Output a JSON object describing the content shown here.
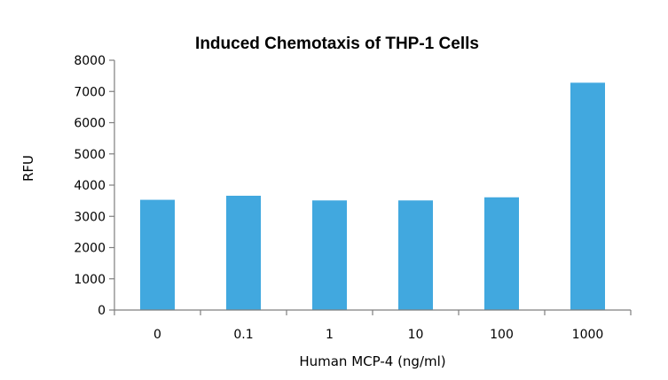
{
  "chart_data": {
    "type": "bar",
    "title": "Induced Chemotaxis of THP-1 Cells",
    "xlabel": "Human MCP-4 (ng/ml)",
    "ylabel": "RFU",
    "categories": [
      "0",
      "0.1",
      "1",
      "10",
      "100",
      "1000"
    ],
    "values": [
      3530,
      3660,
      3510,
      3510,
      3610,
      7280
    ],
    "ylim": [
      0,
      8000
    ],
    "yticks": [
      0,
      1000,
      2000,
      3000,
      4000,
      5000,
      6000,
      7000,
      8000
    ],
    "grid": false,
    "legend": "none",
    "bar_color": "#41a8df"
  }
}
